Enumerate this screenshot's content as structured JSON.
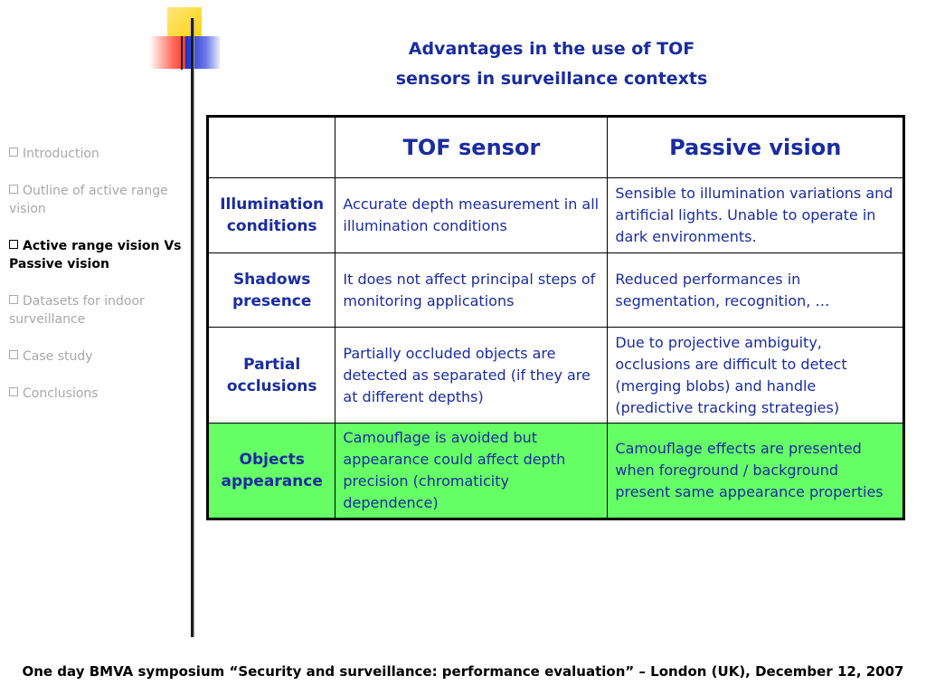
{
  "title": {
    "line1": "Advantages in the use of TOF",
    "line2": "sensors in surveillance contexts"
  },
  "nav": {
    "items": [
      {
        "label": "Introduction",
        "active": false
      },
      {
        "label": "Outline of active range vision",
        "active": false
      },
      {
        "label": "Active range vision Vs Passive vision",
        "active": true
      },
      {
        "label": "Datasets for indoor surveillance",
        "active": false
      },
      {
        "label": "Case study",
        "active": false
      },
      {
        "label": "Conclusions",
        "active": false
      }
    ]
  },
  "table": {
    "headers": [
      "",
      "TOF sensor",
      "Passive vision"
    ],
    "rows": [
      {
        "label": "Illumination conditions",
        "tof": "Accurate depth measurement in all illumination conditions",
        "passive": "Sensible to illumination variations and artificial lights. Unable to operate in dark environments."
      },
      {
        "label": "Shadows presence",
        "tof": "It does not affect principal steps of monitoring applications",
        "passive": "Reduced performances in segmentation, recognition, …"
      },
      {
        "label": "Partial occlusions",
        "tof": "Partially occluded objects are detected as separated (if they are at different depths)",
        "passive": "Due to projective ambiguity, occlusions are difficult to detect (merging blobs) and handle (predictive tracking strategies)"
      },
      {
        "label": "Objects appearance",
        "tof": "Camouflage is avoided but appearance could affect depth precision (chromaticity dependence)",
        "passive": "Camouflage effects are presented when foreground / background present same appearance properties"
      }
    ],
    "highlight_color": "#66ff66",
    "text_color": "#1a2c9e"
  },
  "footer": "One day BMVA symposium “Security and surveillance: performance evaluation” – London (UK), December 12, 2007"
}
